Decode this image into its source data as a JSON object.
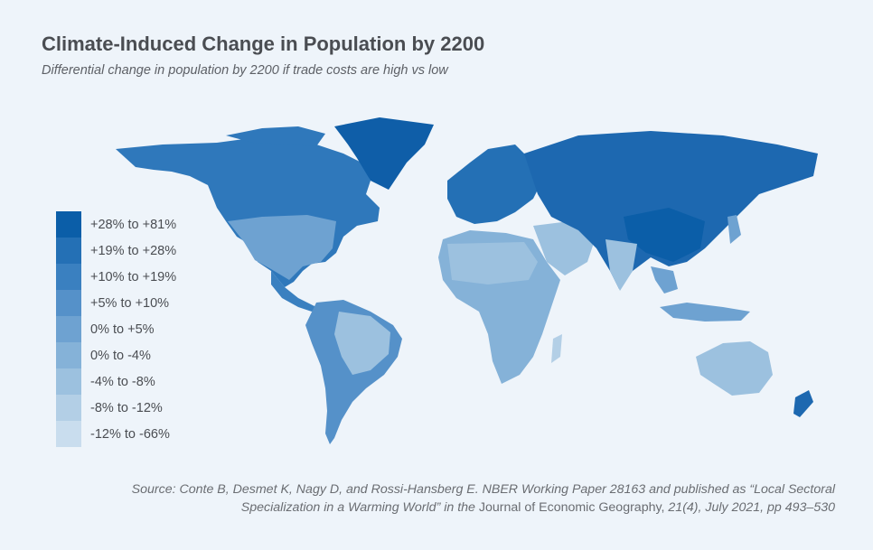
{
  "header": {
    "title": "Climate-Induced Change in Population by 2200",
    "subtitle": "Differential change in population by 2200 if trade costs are high vs low"
  },
  "legend": {
    "items": [
      {
        "label": "+28% to +81%",
        "color": "#0b5ea8"
      },
      {
        "label": "+19% to +28%",
        "color": "#2470b5"
      },
      {
        "label": "+10% to +19%",
        "color": "#3a80c0"
      },
      {
        "label": "+5% to +10%",
        "color": "#5591c9"
      },
      {
        "label": "0% to +5%",
        "color": "#6ea2d1"
      },
      {
        "label": " 0% to -4%",
        "color": "#85b2d8"
      },
      {
        "label": "-4% to -8%",
        "color": "#9cc1df"
      },
      {
        "label": "-8% to -12%",
        "color": "#b3cfe6"
      },
      {
        "label": "-12% to -66%",
        "color": "#c9ddee"
      }
    ]
  },
  "source": {
    "line1_italic": "Source: Conte B, Desmet K, Nagy D, and Rossi-Hansberg E. NBER Working Paper 28163 and published as “Local Sectoral",
    "line2_italic_a": "Specialization in a Warming World” in the ",
    "line2_normal": "Journal of Economic Geography,",
    "line2_italic_b": " 21(4), July 2021, pp 493–530"
  },
  "map_colors": {
    "ocean": "#eef4fa",
    "dark": "#1d68b0",
    "mid": "#4a8ac6",
    "light": "#8ab6dc",
    "pale": "#b6d1e8"
  }
}
